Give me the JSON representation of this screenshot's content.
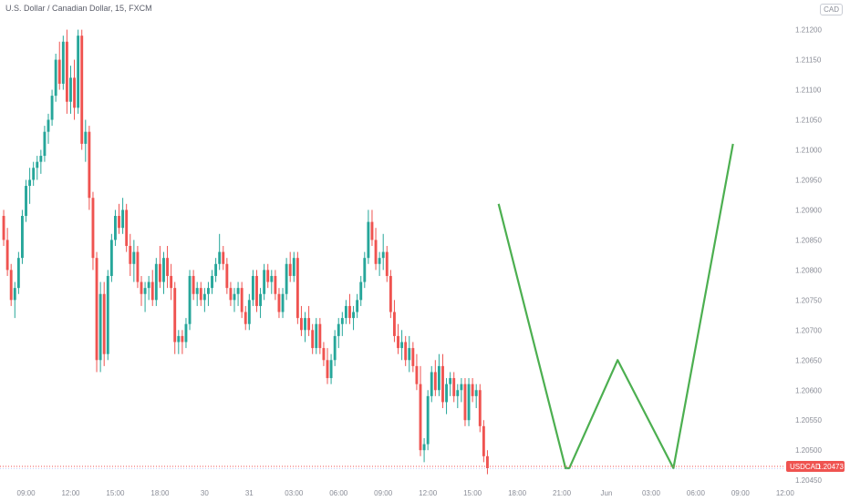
{
  "header": {
    "symbol_title": "U.S. Dollar / Canadian Dollar, 15, FXCM",
    "currency_badge": "CAD"
  },
  "colors": {
    "up": "#26a69a",
    "down": "#ef5350",
    "pattern_line": "#4caf50",
    "price_line": "#ef5350",
    "tag_bg": "#ef5350",
    "axis_text": "#8a8d97"
  },
  "chart_data": {
    "type": "candlestick",
    "symbol": "USDCAD",
    "interval": "15",
    "source": "FXCM",
    "ylim": [
      1.2042,
      1.2127
    ],
    "y_ticks": [
      "1.21250",
      "1.21200",
      "1.21150",
      "1.21100",
      "1.21050",
      "1.21000",
      "1.20950",
      "1.20900",
      "1.20850",
      "1.20800",
      "1.20750",
      "1.20700",
      "1.20650",
      "1.20600",
      "1.20550",
      "1.20500",
      "1.20450",
      "1.20400"
    ],
    "x_ticks": [
      {
        "label": "09:00",
        "bar": 6
      },
      {
        "label": "12:00",
        "bar": 18
      },
      {
        "label": "15:00",
        "bar": 30
      },
      {
        "label": "18:00",
        "bar": 42
      },
      {
        "label": "30",
        "bar": 54
      },
      {
        "label": "31",
        "bar": 66
      },
      {
        "label": "03:00",
        "bar": 78
      },
      {
        "label": "06:00",
        "bar": 90
      },
      {
        "label": "09:00",
        "bar": 102
      },
      {
        "label": "12:00",
        "bar": 114
      },
      {
        "label": "15:00",
        "bar": 126
      },
      {
        "label": "18:00",
        "bar": 138
      },
      {
        "label": "21:00",
        "bar": 150
      },
      {
        "label": "Jun",
        "bar": 162
      },
      {
        "label": "03:00",
        "bar": 174
      },
      {
        "label": "06:00",
        "bar": 186
      },
      {
        "label": "09:00",
        "bar": 198
      },
      {
        "label": "12:00",
        "bar": 210
      }
    ],
    "current_price": {
      "symbol": "USDCAD",
      "value": "1.20473",
      "numeric": 1.20473
    },
    "candles": [
      [
        1.2089,
        1.209,
        1.2084,
        1.2085
      ],
      [
        1.2085,
        1.2087,
        1.2079,
        1.208
      ],
      [
        1.208,
        1.2081,
        1.2074,
        1.2075
      ],
      [
        1.2075,
        1.2078,
        1.2072,
        1.2077
      ],
      [
        1.2077,
        1.2083,
        1.2076,
        1.2082
      ],
      [
        1.2082,
        1.209,
        1.2081,
        1.2089
      ],
      [
        1.2089,
        1.2095,
        1.2088,
        1.2094
      ],
      [
        1.2094,
        1.2097,
        1.2091,
        1.2095
      ],
      [
        1.2095,
        1.2098,
        1.2094,
        1.2097
      ],
      [
        1.2097,
        1.2099,
        1.2095,
        1.2098
      ],
      [
        1.2098,
        1.21,
        1.2096,
        1.2099
      ],
      [
        1.2099,
        1.2104,
        1.2098,
        1.2103
      ],
      [
        1.2103,
        1.2106,
        1.2101,
        1.2105
      ],
      [
        1.2105,
        1.211,
        1.2104,
        1.2109
      ],
      [
        1.2109,
        1.2116,
        1.2108,
        1.2115
      ],
      [
        1.2115,
        1.2118,
        1.211,
        1.2111
      ],
      [
        1.2111,
        1.2119,
        1.211,
        1.2118
      ],
      [
        1.2118,
        1.212,
        1.2106,
        1.2108
      ],
      [
        1.2108,
        1.2114,
        1.2106,
        1.2112
      ],
      [
        1.2112,
        1.2115,
        1.2105,
        1.2107
      ],
      [
        1.2107,
        1.212,
        1.2106,
        1.2119
      ],
      [
        1.2119,
        1.212,
        1.21,
        1.2101
      ],
      [
        1.2101,
        1.2105,
        1.2098,
        1.2103
      ],
      [
        1.2103,
        1.2104,
        1.209,
        1.2092
      ],
      [
        1.2092,
        1.2093,
        1.208,
        1.2082
      ],
      [
        1.2082,
        1.2083,
        1.2063,
        1.2065
      ],
      [
        1.2065,
        1.2078,
        1.2063,
        1.2076
      ],
      [
        1.2076,
        1.2078,
        1.2064,
        1.2066
      ],
      [
        1.2066,
        1.208,
        1.2065,
        1.2079
      ],
      [
        1.2079,
        1.2086,
        1.2078,
        1.2085
      ],
      [
        1.2085,
        1.209,
        1.2084,
        1.2089
      ],
      [
        1.2089,
        1.2091,
        1.2086,
        1.2087
      ],
      [
        1.2087,
        1.2092,
        1.2086,
        1.209
      ],
      [
        1.209,
        1.2091,
        1.2083,
        1.2084
      ],
      [
        1.2084,
        1.2086,
        1.2079,
        1.2081
      ],
      [
        1.2081,
        1.2085,
        1.2078,
        1.2083
      ],
      [
        1.2083,
        1.2084,
        1.2077,
        1.2078
      ],
      [
        1.2078,
        1.2079,
        1.2074,
        1.2076
      ],
      [
        1.2076,
        1.2078,
        1.2073,
        1.2077
      ],
      [
        1.2077,
        1.2079,
        1.2075,
        1.2078
      ],
      [
        1.2078,
        1.208,
        1.2074,
        1.2075
      ],
      [
        1.2075,
        1.2082,
        1.2074,
        1.2081
      ],
      [
        1.2081,
        1.2084,
        1.2077,
        1.2078
      ],
      [
        1.2078,
        1.2083,
        1.2076,
        1.2082
      ],
      [
        1.2082,
        1.2084,
        1.2077,
        1.2079
      ],
      [
        1.2079,
        1.2081,
        1.2075,
        1.2077
      ],
      [
        1.2077,
        1.2078,
        1.2066,
        1.2068
      ],
      [
        1.2068,
        1.207,
        1.2066,
        1.2069
      ],
      [
        1.2069,
        1.207,
        1.2066,
        1.2068
      ],
      [
        1.2068,
        1.2072,
        1.2067,
        1.2071
      ],
      [
        1.2071,
        1.208,
        1.207,
        1.2079
      ],
      [
        1.2079,
        1.208,
        1.2075,
        1.2076
      ],
      [
        1.2076,
        1.2078,
        1.2074,
        1.2077
      ],
      [
        1.2077,
        1.2078,
        1.2074,
        1.2075
      ],
      [
        1.2075,
        1.2077,
        1.2073,
        1.2076
      ],
      [
        1.2076,
        1.2078,
        1.2074,
        1.2077
      ],
      [
        1.2077,
        1.208,
        1.2076,
        1.2079
      ],
      [
        1.2079,
        1.2082,
        1.2078,
        1.2081
      ],
      [
        1.2081,
        1.2086,
        1.208,
        1.2083
      ],
      [
        1.2083,
        1.2084,
        1.208,
        1.2081
      ],
      [
        1.2081,
        1.2082,
        1.2076,
        1.2077
      ],
      [
        1.2077,
        1.2078,
        1.2074,
        1.2075
      ],
      [
        1.2075,
        1.2077,
        1.2073,
        1.2076
      ],
      [
        1.2076,
        1.2078,
        1.2074,
        1.2077
      ],
      [
        1.2077,
        1.2078,
        1.2072,
        1.2073
      ],
      [
        1.2073,
        1.2074,
        1.207,
        1.2071
      ],
      [
        1.2071,
        1.2076,
        1.207,
        1.2075
      ],
      [
        1.2075,
        1.208,
        1.2074,
        1.2079
      ],
      [
        1.2079,
        1.208,
        1.2073,
        1.2074
      ],
      [
        1.2074,
        1.2077,
        1.2072,
        1.2076
      ],
      [
        1.2076,
        1.2081,
        1.2075,
        1.208
      ],
      [
        1.208,
        1.2081,
        1.2077,
        1.2078
      ],
      [
        1.2078,
        1.208,
        1.2076,
        1.2079
      ],
      [
        1.2079,
        1.208,
        1.2075,
        1.2076
      ],
      [
        1.2076,
        1.2077,
        1.2072,
        1.2073
      ],
      [
        1.2073,
        1.2077,
        1.2072,
        1.2076
      ],
      [
        1.2076,
        1.2082,
        1.2075,
        1.2081
      ],
      [
        1.2081,
        1.2083,
        1.2078,
        1.2079
      ],
      [
        1.2079,
        1.2083,
        1.2078,
        1.2082
      ],
      [
        1.2082,
        1.2083,
        1.2071,
        1.2072
      ],
      [
        1.2072,
        1.2074,
        1.2069,
        1.207
      ],
      [
        1.207,
        1.2073,
        1.2068,
        1.2072
      ],
      [
        1.2072,
        1.2074,
        1.2069,
        1.207
      ],
      [
        1.207,
        1.2071,
        1.2066,
        1.2067
      ],
      [
        1.2067,
        1.2072,
        1.2066,
        1.2071
      ],
      [
        1.2071,
        1.2072,
        1.2066,
        1.2067
      ],
      [
        1.2067,
        1.2068,
        1.2064,
        1.2065
      ],
      [
        1.2065,
        1.2067,
        1.2061,
        1.2062
      ],
      [
        1.2062,
        1.2066,
        1.2061,
        1.2065
      ],
      [
        1.2065,
        1.207,
        1.2064,
        1.2069
      ],
      [
        1.2069,
        1.2072,
        1.2067,
        1.2071
      ],
      [
        1.2071,
        1.2073,
        1.2069,
        1.2072
      ],
      [
        1.2072,
        1.2075,
        1.2071,
        1.2074
      ],
      [
        1.2074,
        1.2076,
        1.2071,
        1.2072
      ],
      [
        1.2072,
        1.2074,
        1.207,
        1.2073
      ],
      [
        1.2073,
        1.2076,
        1.2072,
        1.2075
      ],
      [
        1.2075,
        1.2079,
        1.2074,
        1.2078
      ],
      [
        1.2078,
        1.2083,
        1.2077,
        1.2082
      ],
      [
        1.2082,
        1.209,
        1.2081,
        1.2088
      ],
      [
        1.2088,
        1.209,
        1.2084,
        1.2085
      ],
      [
        1.2085,
        1.2087,
        1.208,
        1.2081
      ],
      [
        1.2081,
        1.2083,
        1.2079,
        1.2082
      ],
      [
        1.2082,
        1.2086,
        1.208,
        1.2083
      ],
      [
        1.2083,
        1.2084,
        1.2078,
        1.2079
      ],
      [
        1.2079,
        1.208,
        1.2072,
        1.2073
      ],
      [
        1.2073,
        1.2075,
        1.2068,
        1.2069
      ],
      [
        1.2069,
        1.2071,
        1.2066,
        1.2067
      ],
      [
        1.2067,
        1.207,
        1.2065,
        1.2068
      ],
      [
        1.2068,
        1.2069,
        1.2064,
        1.2065
      ],
      [
        1.2065,
        1.2069,
        1.2063,
        1.2067
      ],
      [
        1.2067,
        1.2068,
        1.2063,
        1.2064
      ],
      [
        1.2064,
        1.2066,
        1.206,
        1.2061
      ],
      [
        1.2061,
        1.2064,
        1.2049,
        1.205
      ],
      [
        1.205,
        1.2052,
        1.2048,
        1.2051
      ],
      [
        1.2051,
        1.206,
        1.205,
        1.2059
      ],
      [
        1.2059,
        1.2064,
        1.2058,
        1.2063
      ],
      [
        1.2063,
        1.2065,
        1.2059,
        1.206
      ],
      [
        1.206,
        1.2066,
        1.2059,
        1.2064
      ],
      [
        1.2064,
        1.2066,
        1.2057,
        1.2058
      ],
      [
        1.2058,
        1.2062,
        1.2056,
        1.2061
      ],
      [
        1.2061,
        1.2063,
        1.2059,
        1.2062
      ],
      [
        1.2062,
        1.2063,
        1.2058,
        1.2059
      ],
      [
        1.2059,
        1.2061,
        1.2057,
        1.206
      ],
      [
        1.206,
        1.2062,
        1.2058,
        1.2061
      ],
      [
        1.2061,
        1.2062,
        1.2054,
        1.2055
      ],
      [
        1.2055,
        1.2062,
        1.2054,
        1.2061
      ],
      [
        1.2061,
        1.2062,
        1.2058,
        1.2059
      ],
      [
        1.2059,
        1.2061,
        1.2057,
        1.206
      ],
      [
        1.206,
        1.2061,
        1.2053,
        1.2054
      ],
      [
        1.2054,
        1.2055,
        1.2048,
        1.2049
      ],
      [
        1.2049,
        1.205,
        1.2046,
        1.2047
      ]
    ],
    "pattern_points": [
      {
        "bar": 133,
        "price": 1.2091
      },
      {
        "bar": 151,
        "price": 1.2047
      },
      {
        "bar": 152,
        "price": 1.2047
      },
      {
        "bar": 165,
        "price": 1.2065
      },
      {
        "bar": 180,
        "price": 1.2047
      },
      {
        "bar": 196,
        "price": 1.2101
      }
    ]
  }
}
